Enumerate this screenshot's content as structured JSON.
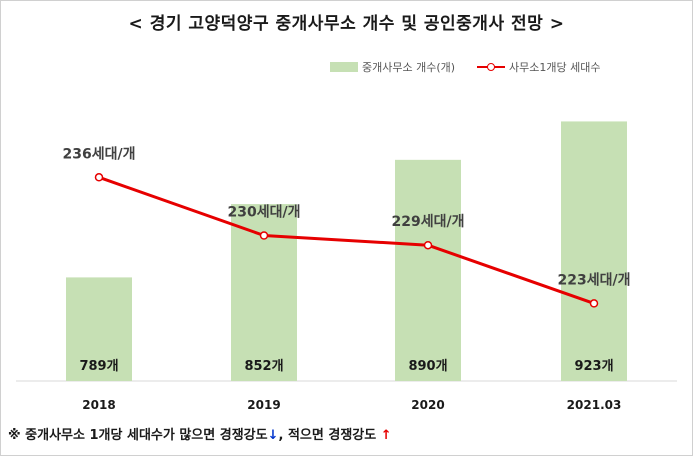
{
  "title": "< 경기 고양덕양구 중개사무소 개수 및 공인중개사 전망 >",
  "legend": {
    "bar_label": "중개사무소 개수(개)",
    "line_label": "사무소1개당 세대수"
  },
  "colors": {
    "bar": "#c6e0b4",
    "line": "#e60000",
    "arrow_down": "#0033cc",
    "arrow_up": "#e60000"
  },
  "footnote": {
    "text1": "※ 중개사무소 1개당 세대수가 많으면 경쟁강도",
    "arrow_down": "↓",
    "text2": ", 적으면 경쟁강도 ",
    "arrow_up": "↑"
  },
  "chart_data": {
    "type": "bar",
    "categories": [
      "2018",
      "2019",
      "2020",
      "2021.03"
    ],
    "series": [
      {
        "name": "중개사무소 개수(개)",
        "type": "bar",
        "values": [
          789,
          852,
          890,
          923
        ],
        "labels": [
          "789개",
          "852개",
          "890개",
          "923개"
        ]
      },
      {
        "name": "사무소1개당 세대수",
        "type": "line",
        "values": [
          236,
          230,
          229,
          223
        ],
        "labels": [
          "236세대/개",
          "230세대/개",
          "229세대/개",
          "223세대/개"
        ]
      }
    ],
    "bar_axis_range": [
      700,
      950
    ],
    "line_axis_range": [
      215,
      245
    ]
  }
}
